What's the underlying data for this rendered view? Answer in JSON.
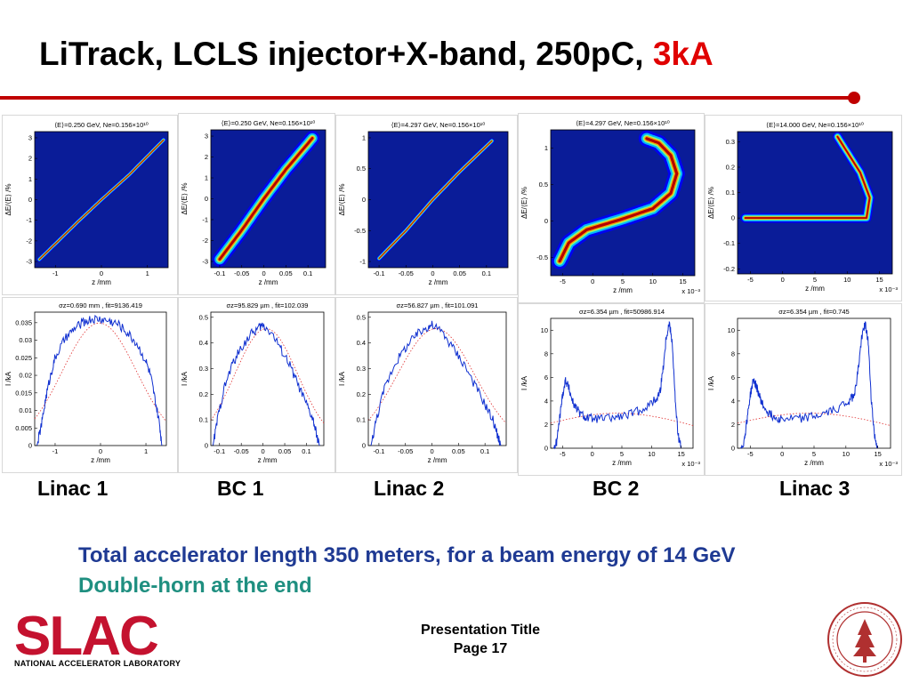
{
  "slide": {
    "title_main": "LiTrack, LCLS injector+X-band, 250pC,",
    "title_accent": "3kA",
    "summary_line1": "Total accelerator length 350 meters, for a beam energy of 14 GeV",
    "summary_line2": "Double-horn at the end",
    "footer_title": "Presentation Title",
    "footer_page": "Page 17",
    "logo_text": "SLAC",
    "logo_tagline": "NATIONAL ACCELERATOR LABORATORY",
    "colors": {
      "title_accent": "#e00000",
      "rule": "#c00000",
      "summary1": "#1f3a93",
      "summary2": "#1f8f80",
      "logo": "#c4122f"
    }
  },
  "stages": [
    "Linac 1",
    "BC 1",
    "Linac 2",
    "BC 2",
    "Linac 3"
  ],
  "chart_data": [
    {
      "type": "heatmap",
      "stage": "Linac 1",
      "title": "⟨E⟩=0.250 GeV, Ne=0.156×10¹⁰",
      "xlabel": "z /mm",
      "ylabel": "ΔE/⟨E⟩ /%",
      "xlim": [
        -1.45,
        1.45
      ],
      "ylim": [
        -3.3,
        3.3
      ],
      "xticks": [
        -1,
        0,
        1
      ],
      "yticks": [
        -3,
        -2,
        -1,
        0,
        1,
        2,
        3
      ],
      "x_exponent": "",
      "ridge": [
        [
          -1.35,
          -2.9
        ],
        [
          -0.5,
          -1.05
        ],
        [
          0,
          0
        ],
        [
          0.6,
          1.2
        ],
        [
          1.35,
          2.9
        ]
      ],
      "width": 0.07,
      "shape": "line"
    },
    {
      "type": "heatmap",
      "stage": "BC 1",
      "title": "⟨E⟩=0.250 GeV, Ne=0.156×10¹⁰",
      "xlabel": "z /mm",
      "ylabel": "ΔE/⟨E⟩ /%",
      "xlim": [
        -0.12,
        0.14
      ],
      "ylim": [
        -3.3,
        3.3
      ],
      "xticks": [
        -0.1,
        -0.05,
        0,
        0.05,
        0.1
      ],
      "yticks": [
        -3,
        -2,
        -1,
        0,
        1,
        2,
        3
      ],
      "x_exponent": "",
      "ridge": [
        [
          -0.1,
          -2.9
        ],
        [
          -0.05,
          -1.5
        ],
        [
          0,
          0
        ],
        [
          0.05,
          1.4
        ],
        [
          0.11,
          2.9
        ]
      ],
      "width": 0.22,
      "shape": "line"
    },
    {
      "type": "heatmap",
      "stage": "Linac 2",
      "title": "⟨E⟩=4.297 GeV, Ne=0.156×10¹⁰",
      "xlabel": "z /mm",
      "ylabel": "ΔE/⟨E⟩ /%",
      "xlim": [
        -0.12,
        0.14
      ],
      "ylim": [
        -1.1,
        1.1
      ],
      "xticks": [
        -0.1,
        -0.05,
        0,
        0.05,
        0.1
      ],
      "yticks": [
        -1,
        -0.5,
        0,
        0.5,
        1
      ],
      "x_exponent": "",
      "ridge": [
        [
          -0.1,
          -0.95
        ],
        [
          -0.05,
          -0.5
        ],
        [
          0,
          0
        ],
        [
          0.05,
          0.45
        ],
        [
          0.11,
          0.95
        ]
      ],
      "width": 0.025,
      "shape": "line"
    },
    {
      "type": "heatmap",
      "stage": "BC 2",
      "title": "⟨E⟩=4.297 GeV, Ne=0.156×10¹⁰",
      "xlabel": "z /mm",
      "ylabel": "ΔE/⟨E⟩ /%",
      "xlim": [
        -7,
        17
      ],
      "ylim": [
        -0.75,
        1.25
      ],
      "xticks": [
        -5,
        0,
        5,
        10,
        15
      ],
      "yticks": [
        -0.5,
        0,
        0.5,
        1
      ],
      "x_exponent": "x 10⁻³",
      "ridge": [
        [
          -5.5,
          -0.55
        ],
        [
          -4,
          -0.3
        ],
        [
          -1,
          -0.12
        ],
        [
          5,
          0.03
        ],
        [
          10,
          0.17
        ],
        [
          13,
          0.38
        ],
        [
          14,
          0.65
        ],
        [
          13,
          0.9
        ],
        [
          11,
          1.07
        ],
        [
          9,
          1.13
        ]
      ],
      "width": 0.07,
      "shape": "curve"
    },
    {
      "type": "heatmap",
      "stage": "Linac 3",
      "title": "⟨E⟩=14.000 GeV, Ne=0.156×10¹⁰",
      "xlabel": "z /mm",
      "ylabel": "ΔE/⟨E⟩ /%",
      "xlim": [
        -7,
        17
      ],
      "ylim": [
        -0.22,
        0.34
      ],
      "xticks": [
        -5,
        0,
        5,
        10,
        15
      ],
      "yticks": [
        -0.2,
        -0.1,
        0,
        0.1,
        0.2,
        0.3
      ],
      "x_exponent": "x 10⁻³",
      "ridge": [
        [
          -5.8,
          0.0
        ],
        [
          -4,
          0.0
        ],
        [
          0,
          0.0
        ],
        [
          5,
          0.0
        ],
        [
          10,
          0.0
        ],
        [
          13,
          0.0
        ],
        [
          13.5,
          0.08
        ],
        [
          12,
          0.18
        ],
        [
          10,
          0.26
        ],
        [
          8.5,
          0.32
        ]
      ],
      "width": 0.012,
      "shape": "curve"
    },
    {
      "type": "line",
      "stage": "Linac 1",
      "title": "σz=0.690 mm , fit=9136.419",
      "xlabel": "z /mm",
      "ylabel": "I /kA",
      "xlim": [
        -1.45,
        1.45
      ],
      "ylim": [
        0,
        0.038
      ],
      "xticks": [
        -1,
        0,
        1
      ],
      "yticks": [
        0,
        0.005,
        0.01,
        0.015,
        0.02,
        0.025,
        0.03,
        0.035
      ],
      "x_exponent": "",
      "x": [
        -1.4,
        -1.3,
        -1.2,
        -1.1,
        -1.0,
        -0.8,
        -0.6,
        -0.4,
        -0.2,
        0,
        0.2,
        0.4,
        0.6,
        0.8,
        1.0,
        1.1,
        1.2,
        1.3,
        1.35
      ],
      "y": [
        0.0,
        0.006,
        0.014,
        0.02,
        0.025,
        0.03,
        0.033,
        0.035,
        0.036,
        0.036,
        0.0355,
        0.0345,
        0.032,
        0.029,
        0.024,
        0.02,
        0.013,
        0.006,
        0.0
      ]
    },
    {
      "type": "line",
      "stage": "BC 1",
      "title": "σz=95.829 µm , fit=102.039",
      "xlabel": "z /mm",
      "ylabel": "I /kA",
      "xlim": [
        -0.12,
        0.14
      ],
      "ylim": [
        0,
        0.52
      ],
      "xticks": [
        -0.1,
        -0.05,
        0,
        0.05,
        0.1
      ],
      "yticks": [
        0,
        0.1,
        0.2,
        0.3,
        0.4,
        0.5
      ],
      "x_exponent": "",
      "x": [
        -0.115,
        -0.105,
        -0.09,
        -0.07,
        -0.05,
        -0.03,
        -0.01,
        0,
        0.02,
        0.04,
        0.06,
        0.08,
        0.1,
        0.115,
        0.125,
        0.13
      ],
      "y": [
        0.0,
        0.1,
        0.22,
        0.32,
        0.38,
        0.43,
        0.46,
        0.47,
        0.44,
        0.38,
        0.32,
        0.24,
        0.16,
        0.1,
        0.03,
        0.0
      ]
    },
    {
      "type": "line",
      "stage": "Linac 2",
      "title": "σz=56.827 µm , fit=101.091",
      "xlabel": "z /mm",
      "ylabel": "I /kA",
      "xlim": [
        -0.12,
        0.14
      ],
      "ylim": [
        0,
        0.52
      ],
      "xticks": [
        -0.1,
        -0.05,
        0,
        0.05,
        0.1
      ],
      "yticks": [
        0,
        0.1,
        0.2,
        0.3,
        0.4,
        0.5
      ],
      "x_exponent": "",
      "x": [
        -0.115,
        -0.105,
        -0.09,
        -0.07,
        -0.05,
        -0.03,
        -0.01,
        0,
        0.02,
        0.04,
        0.06,
        0.08,
        0.1,
        0.115,
        0.125,
        0.13
      ],
      "y": [
        0.0,
        0.1,
        0.22,
        0.32,
        0.38,
        0.43,
        0.46,
        0.47,
        0.44,
        0.38,
        0.32,
        0.24,
        0.16,
        0.1,
        0.03,
        0.0
      ]
    },
    {
      "type": "line",
      "stage": "BC 2",
      "title": "σz=6.354 µm , fit=50986.914",
      "xlabel": "z /mm",
      "ylabel": "I /kA",
      "xlim": [
        -7,
        17
      ],
      "ylim": [
        0,
        11
      ],
      "xticks": [
        -5,
        0,
        5,
        10,
        15
      ],
      "yticks": [
        0,
        2,
        4,
        6,
        8,
        10
      ],
      "x_exponent": "x 10⁻³",
      "x": [
        -6.5,
        -6,
        -5.5,
        -5,
        -4.5,
        -4,
        -3.5,
        -3,
        -2,
        -1,
        0,
        2,
        4,
        6,
        8,
        10,
        11,
        11.5,
        12,
        12.5,
        13,
        13.5,
        14,
        14.5,
        15
      ],
      "y": [
        0.0,
        0.5,
        2.5,
        4.5,
        5.8,
        5.2,
        4.3,
        3.6,
        2.9,
        2.6,
        2.5,
        2.5,
        2.6,
        2.8,
        3.2,
        3.8,
        4.3,
        5.0,
        7.0,
        9.5,
        10.6,
        9.0,
        4.0,
        1.0,
        0.0
      ]
    },
    {
      "type": "line",
      "stage": "Linac 3",
      "title": "σz=6.354 µm , fit=0.745",
      "xlabel": "z /mm",
      "ylabel": "I /kA",
      "xlim": [
        -7,
        17
      ],
      "ylim": [
        0,
        11
      ],
      "xticks": [
        -5,
        0,
        5,
        10,
        15
      ],
      "yticks": [
        0,
        2,
        4,
        6,
        8,
        10
      ],
      "x_exponent": "x 10⁻³",
      "x": [
        -6.5,
        -6,
        -5.5,
        -5,
        -4.5,
        -4,
        -3.5,
        -3,
        -2,
        -1,
        0,
        2,
        4,
        6,
        8,
        10,
        11,
        11.5,
        12,
        12.5,
        13,
        13.5,
        14,
        14.5,
        15
      ],
      "y": [
        0.0,
        0.5,
        2.5,
        4.5,
        5.8,
        5.2,
        4.3,
        3.6,
        2.9,
        2.6,
        2.5,
        2.5,
        2.6,
        2.8,
        3.2,
        3.8,
        4.3,
        5.0,
        7.0,
        9.5,
        10.6,
        9.0,
        4.0,
        1.0,
        0.0
      ]
    }
  ]
}
